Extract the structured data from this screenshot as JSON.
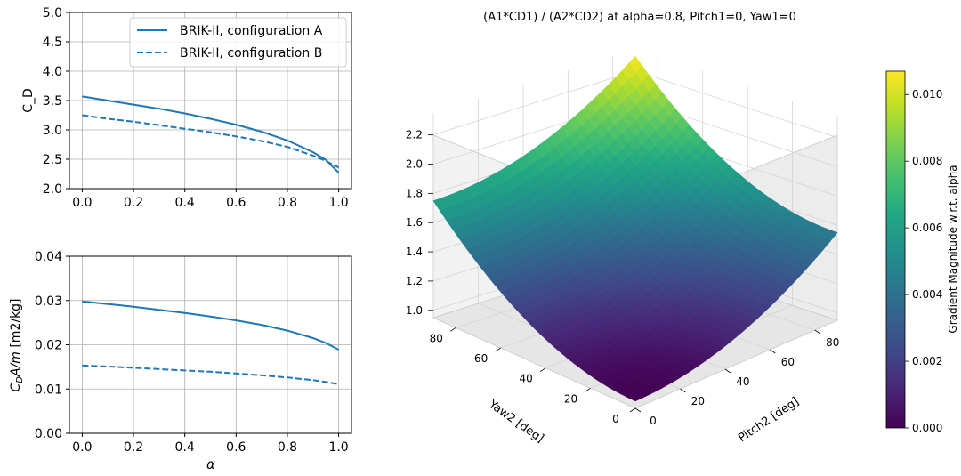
{
  "chart_data": [
    {
      "type": "line",
      "title": "",
      "xlabel": "",
      "ylabel": "C_D",
      "xlim": [
        -0.05,
        1.05
      ],
      "ylim": [
        2.0,
        5.0
      ],
      "xticks": [
        "0.0",
        "0.2",
        "0.4",
        "0.6",
        "0.8",
        "1.0"
      ],
      "yticks": [
        "2.0",
        "2.5",
        "3.0",
        "3.5",
        "4.0",
        "4.5",
        "5.0"
      ],
      "grid": true,
      "legend": "top-right",
      "x": [
        0.0,
        0.1,
        0.2,
        0.3,
        0.4,
        0.5,
        0.6,
        0.7,
        0.8,
        0.9,
        0.95,
        1.0
      ],
      "series": [
        {
          "name": "BRIK-II, configuration A",
          "style": "solid",
          "color": "#1f77b4",
          "values": [
            3.57,
            3.5,
            3.43,
            3.36,
            3.28,
            3.19,
            3.09,
            2.97,
            2.82,
            2.62,
            2.49,
            2.27
          ]
        },
        {
          "name": "BRIK-II, configuration B",
          "style": "dashed",
          "color": "#1f77b4",
          "values": [
            3.25,
            3.19,
            3.14,
            3.08,
            3.02,
            2.96,
            2.89,
            2.81,
            2.71,
            2.56,
            2.47,
            2.36
          ]
        }
      ]
    },
    {
      "type": "line",
      "title": "",
      "xlabel": "α",
      "ylabel": "C_D A/m [m2/kg]",
      "xlim": [
        -0.05,
        1.05
      ],
      "ylim": [
        0.0,
        0.04
      ],
      "xticks": [
        "0.0",
        "0.2",
        "0.4",
        "0.6",
        "0.8",
        "1.0"
      ],
      "yticks": [
        "0.00",
        "0.01",
        "0.02",
        "0.03",
        "0.04"
      ],
      "grid": true,
      "x": [
        0.0,
        0.1,
        0.2,
        0.3,
        0.4,
        0.5,
        0.6,
        0.7,
        0.8,
        0.9,
        0.95,
        1.0
      ],
      "series": [
        {
          "style": "solid",
          "color": "#1f77b4",
          "values": [
            0.0298,
            0.0292,
            0.0286,
            0.0279,
            0.0272,
            0.0264,
            0.0255,
            0.0245,
            0.0232,
            0.0215,
            0.0204,
            0.0189
          ]
        },
        {
          "style": "dashed",
          "color": "#1f77b4",
          "values": [
            0.0153,
            0.0151,
            0.0148,
            0.0145,
            0.0142,
            0.0139,
            0.0135,
            0.0131,
            0.0126,
            0.012,
            0.0116,
            0.0111
          ]
        }
      ]
    },
    {
      "type": "surface3d",
      "title": "(A1*CD1) / (A2*CD2) at alpha=0.8, Pitch1=0, Yaw1=0",
      "xlabel": "Pitch2 [deg]",
      "ylabel": "Yaw2 [deg]",
      "zlabel": "",
      "xlim": [
        0,
        90
      ],
      "ylim": [
        0,
        90
      ],
      "zlim": [
        0.95,
        2.35
      ],
      "xticks": [
        "0",
        "20",
        "40",
        "60",
        "80"
      ],
      "yticks": [
        "0",
        "20",
        "40",
        "60",
        "80"
      ],
      "zticks": [
        "1.0",
        "1.2",
        "1.4",
        "1.6",
        "1.8",
        "2.0",
        "2.2"
      ],
      "grid": true,
      "colormap": "viridis",
      "surface": {
        "corners": {
          "pitch0_yaw0": 1.0,
          "pitch90_yaw0": 1.55,
          "pitch0_yaw90": 1.75,
          "pitch90_yaw90": 2.3
        },
        "note_shape": "bowl rising with pitch2 and yaw2"
      },
      "colorbar": {
        "label": "Gradient Magnitude w.r.t. alpha",
        "range": [
          0.0,
          0.0107
        ],
        "ticks": [
          "0.000",
          "0.002",
          "0.004",
          "0.006",
          "0.008",
          "0.010"
        ]
      }
    }
  ]
}
